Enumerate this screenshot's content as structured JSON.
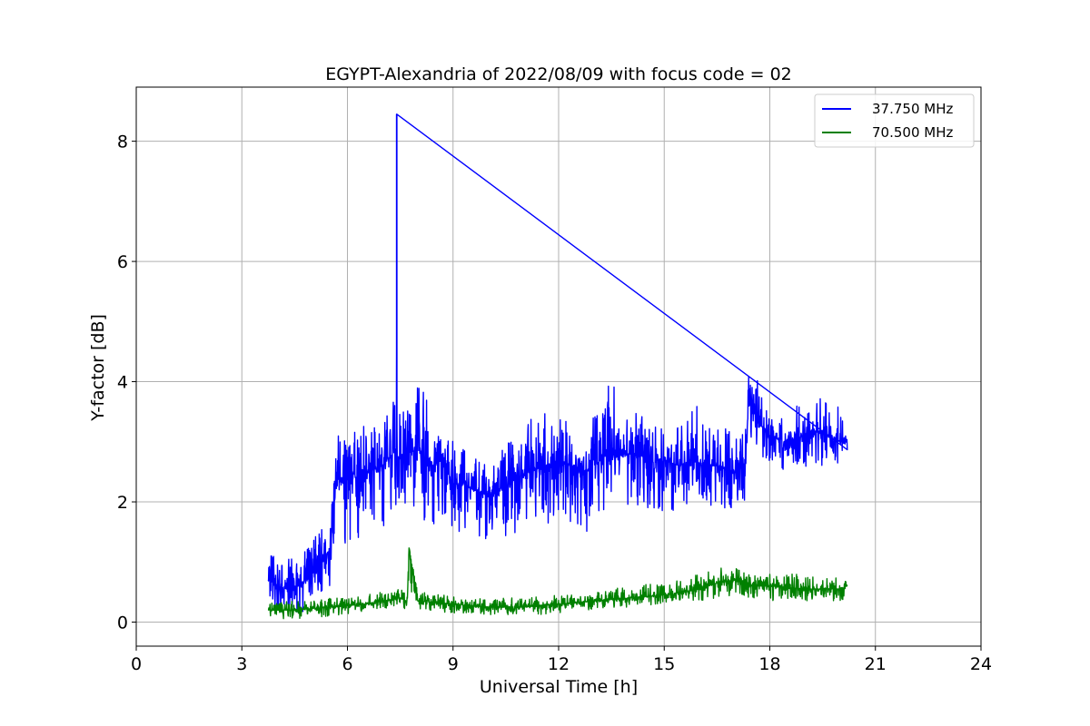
{
  "chart_data": {
    "type": "line",
    "title": "EGYPT-Alexandria of 2022/08/09 with focus code = 02",
    "xlabel": "Universal Time [h]",
    "ylabel": "Y-factor [dB]",
    "xlim": [
      0,
      24
    ],
    "ylim": [
      -0.4,
      8.9
    ],
    "xticks": [
      0,
      3,
      6,
      9,
      12,
      15,
      18,
      21,
      24
    ],
    "yticks": [
      0,
      2,
      4,
      6,
      8
    ],
    "xtick_labels": [
      "0",
      "3",
      "6",
      "9",
      "12",
      "15",
      "18",
      "21",
      "24"
    ],
    "ytick_labels": [
      "0",
      "2",
      "4",
      "6",
      "8"
    ],
    "grid": true,
    "legend_position": "top-right",
    "series": [
      {
        "name": "37.750 MHz",
        "color": "#0000ff",
        "x": [
          3.75,
          4.0,
          4.3,
          4.6,
          4.9,
          5.2,
          5.5,
          5.7,
          5.8,
          6.2,
          6.6,
          7.0,
          7.3,
          7.4,
          7.45,
          7.5,
          7.8,
          8.1,
          8.4,
          8.7,
          9.0,
          9.3,
          9.6,
          10.0,
          10.4,
          10.8,
          11.2,
          11.6,
          12.0,
          12.4,
          12.8,
          13.2,
          13.5,
          13.8,
          14.2,
          14.6,
          15.0,
          15.4,
          15.8,
          16.2,
          16.6,
          17.0,
          17.3,
          17.4,
          17.7,
          18.0,
          18.4,
          18.8,
          19.2,
          19.6,
          20.0,
          20.2
        ],
        "y": [
          0.7,
          0.6,
          0.55,
          0.6,
          0.75,
          1.0,
          1.2,
          2.4,
          2.4,
          2.4,
          2.5,
          2.6,
          2.8,
          2.9,
          2.7,
          2.7,
          2.85,
          2.8,
          2.6,
          2.7,
          2.3,
          2.3,
          2.2,
          2.1,
          2.2,
          2.4,
          2.5,
          2.6,
          2.7,
          2.6,
          2.5,
          2.7,
          2.9,
          2.8,
          2.8,
          2.7,
          2.7,
          2.6,
          2.7,
          2.6,
          2.6,
          2.5,
          2.6,
          3.7,
          3.3,
          3.1,
          3.0,
          3.05,
          3.2,
          3.1,
          3.0,
          3.05
        ],
        "max": [
          1.25,
          1.15,
          1.05,
          1.1,
          1.3,
          1.6,
          1.75,
          3.2,
          3.3,
          3.2,
          3.3,
          3.4,
          3.7,
          8.45,
          3.9,
          3.7,
          3.75,
          4.2,
          3.3,
          3.2,
          3.0,
          2.9,
          2.8,
          2.6,
          2.9,
          3.1,
          3.4,
          3.5,
          3.6,
          3.5,
          3.5,
          3.7,
          4.05,
          3.6,
          3.6,
          3.3,
          3.4,
          3.3,
          3.7,
          3.4,
          3.3,
          3.4,
          3.3,
          4.1,
          4.0,
          3.6,
          3.5,
          3.6,
          3.6,
          4.0,
          3.5,
          3.3
        ],
        "min": [
          0.25,
          0.15,
          0.2,
          0.1,
          0.25,
          0.4,
          0.6,
          1.4,
          1.3,
          1.3,
          1.5,
          1.5,
          1.6,
          2.0,
          1.9,
          1.9,
          1.8,
          1.7,
          1.6,
          1.5,
          1.4,
          1.5,
          1.45,
          1.3,
          1.3,
          1.4,
          1.6,
          1.5,
          1.8,
          1.6,
          1.5,
          1.8,
          2.0,
          2.0,
          1.9,
          1.8,
          1.8,
          1.8,
          1.9,
          1.9,
          1.8,
          1.9,
          2.0,
          3.0,
          2.8,
          2.6,
          2.5,
          2.55,
          2.6,
          2.6,
          2.6,
          2.65
        ]
      },
      {
        "name": "70.500 MHz",
        "color": "#008000",
        "x": [
          3.75,
          4.5,
          5.5,
          6.5,
          7.0,
          7.5,
          7.7,
          7.75,
          8.0,
          9.0,
          10.0,
          11.0,
          12.0,
          13.0,
          14.0,
          15.0,
          16.0,
          16.5,
          17.0,
          17.5,
          18.0,
          19.0,
          20.0,
          20.2
        ],
        "y": [
          0.2,
          0.2,
          0.25,
          0.3,
          0.35,
          0.4,
          0.35,
          1.25,
          0.35,
          0.3,
          0.25,
          0.25,
          0.3,
          0.35,
          0.4,
          0.45,
          0.55,
          0.65,
          0.7,
          0.6,
          0.6,
          0.55,
          0.55,
          0.6
        ],
        "max": [
          0.35,
          0.35,
          0.4,
          0.45,
          0.5,
          0.55,
          0.5,
          1.25,
          0.5,
          0.45,
          0.4,
          0.4,
          0.45,
          0.5,
          0.6,
          0.65,
          0.8,
          0.9,
          0.9,
          0.8,
          0.8,
          0.8,
          0.75,
          0.75
        ],
        "min": [
          0.05,
          0.05,
          0.1,
          0.15,
          0.2,
          0.25,
          0.2,
          0.4,
          0.2,
          0.15,
          0.1,
          0.1,
          0.15,
          0.2,
          0.25,
          0.3,
          0.35,
          0.4,
          0.45,
          0.4,
          0.35,
          0.35,
          0.35,
          0.4
        ]
      }
    ]
  }
}
